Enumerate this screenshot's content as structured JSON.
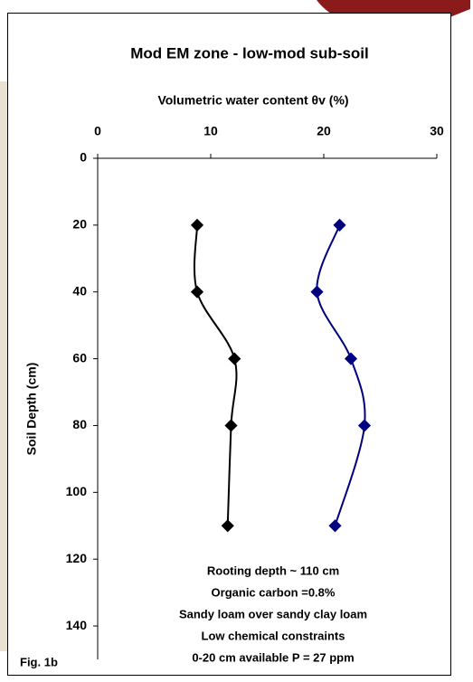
{
  "chart_data": {
    "type": "line",
    "title": "Mod EM zone - low-mod sub-soil",
    "x_label": "Volumetric water content θv (%)",
    "y_label": "Soil Depth (cm)",
    "depths": [
      20,
      40,
      60,
      80,
      110
    ],
    "series": [
      {
        "color": "#000000",
        "values": [
          8.8,
          8.8,
          12.1,
          11.8,
          11.5
        ]
      },
      {
        "color": "#000080",
        "values": [
          21.4,
          19.4,
          22.4,
          23.6,
          21.0
        ]
      }
    ],
    "xlim": [
      0,
      30
    ],
    "xticks": [
      0,
      10,
      20,
      30
    ],
    "ylim": [
      0,
      150
    ],
    "yticks": [
      0,
      20,
      40,
      60,
      80,
      100,
      120,
      140
    ],
    "annotations": [
      "Rooting depth ~ 110 cm",
      "Organic carbon =0.8%",
      "Sandy loam over sandy clay loam",
      "Low chemical constraints",
      "0-20 cm available P =  27 ppm"
    ],
    "figure_label": "Fig. 1b"
  }
}
